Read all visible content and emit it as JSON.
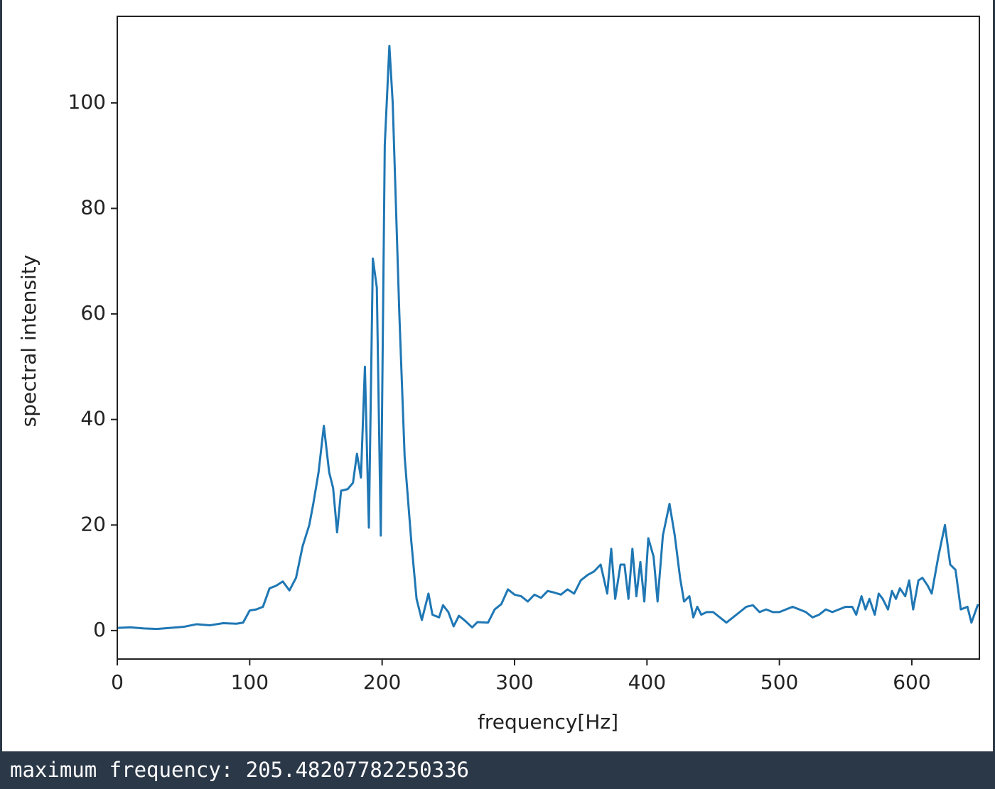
{
  "chart_data": {
    "type": "line",
    "x_label": "frequency[Hz]",
    "y_label": "spectral intensity",
    "color": "#1f77b4",
    "x": [
      0,
      10,
      20,
      30,
      40,
      50,
      60,
      70,
      80,
      90,
      95,
      100,
      105,
      110,
      115,
      120,
      125,
      130,
      135,
      140,
      145,
      148,
      152,
      156,
      160,
      163,
      166,
      169,
      174,
      178,
      181,
      184,
      187,
      190,
      193,
      196,
      199,
      202,
      205.48,
      208,
      213,
      217,
      222,
      226,
      230,
      235,
      238,
      243,
      246,
      250,
      254,
      258,
      262,
      268,
      272,
      280,
      285,
      290,
      295,
      300,
      305,
      310,
      315,
      320,
      325,
      330,
      335,
      340,
      345,
      350,
      355,
      360,
      365,
      370,
      373,
      376,
      380,
      383,
      386,
      389,
      392,
      395,
      398,
      401,
      405,
      408,
      412,
      417,
      421,
      425,
      428,
      432,
      435,
      438,
      441,
      445,
      450,
      455,
      460,
      465,
      470,
      475,
      480,
      485,
      490,
      495,
      500,
      505,
      510,
      515,
      520,
      525,
      530,
      535,
      540,
      545,
      550,
      555,
      558,
      562,
      565,
      568,
      572,
      575,
      578,
      582,
      585,
      588,
      591,
      595,
      598,
      601,
      605,
      608,
      612,
      615,
      620,
      625,
      629,
      633,
      637,
      642,
      645,
      650
    ],
    "values": [
      0.5,
      0.6,
      0.4,
      0.3,
      0.5,
      0.7,
      1.2,
      1.0,
      1.4,
      1.3,
      1.5,
      3.8,
      4.0,
      4.5,
      8.0,
      8.5,
      9.3,
      7.6,
      10,
      16,
      20,
      24,
      30,
      38.8,
      30,
      27,
      18.6,
      26.5,
      26.8,
      28,
      33.5,
      29,
      50,
      19.5,
      70.5,
      65,
      18,
      92,
      110.8,
      100,
      60,
      33,
      17,
      6,
      2,
      7,
      3,
      2.5,
      4.8,
      3.5,
      0.8,
      2.8,
      2,
      0.6,
      1.6,
      1.5,
      4,
      5,
      7.8,
      6.8,
      6.5,
      5.5,
      6.8,
      6.2,
      7.5,
      7.2,
      6.8,
      7.8,
      7.0,
      9.5,
      10.5,
      11.2,
      12.5,
      7,
      15.5,
      6,
      12.5,
      12.5,
      6,
      15.5,
      6.5,
      13,
      5.5,
      17.5,
      14,
      5.5,
      18,
      24,
      18,
      10,
      5.5,
      6.5,
      2.5,
      4.5,
      3,
      3.5,
      3.5,
      2.5,
      1.5,
      2.5,
      3.5,
      4.5,
      4.8,
      3.5,
      4,
      3.5,
      3.5,
      4,
      4.5,
      4,
      3.5,
      2.5,
      3,
      4,
      3.5,
      4,
      4.5,
      4.5,
      3,
      6.5,
      4,
      6,
      3,
      7,
      6,
      4,
      7.5,
      6,
      8,
      6.5,
      9.5,
      4,
      9.5,
      10,
      8.5,
      7,
      14,
      20,
      12.5,
      11.5,
      4,
      4.5,
      1.5,
      5
    ],
    "xlim": [
      0,
      651
    ],
    "ylim": [
      -5.4,
      116.4
    ],
    "xticks": [
      0,
      100,
      200,
      300,
      400,
      500,
      600
    ],
    "yticks": [
      0,
      20,
      40,
      60,
      80,
      100
    ]
  },
  "console": {
    "text": "maximum frequency: 205.48207782250336"
  }
}
